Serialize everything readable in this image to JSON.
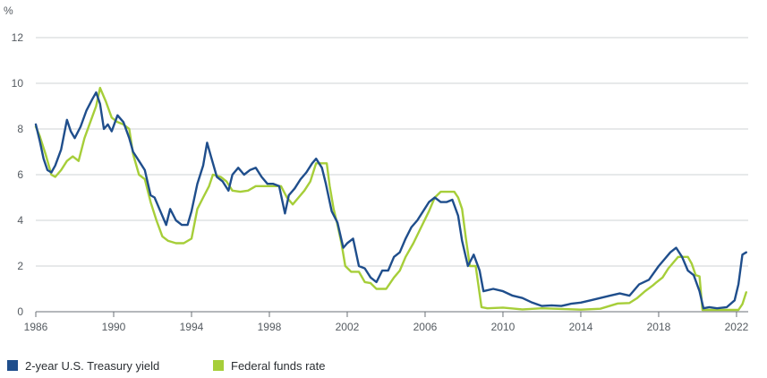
{
  "chart_data": {
    "type": "line",
    "title": "",
    "xlabel": "",
    "ylabel": "%",
    "xlim": [
      1986,
      2022.6
    ],
    "ylim": [
      0,
      12
    ],
    "x_ticks": [
      "1986",
      "1990",
      "1994",
      "1998",
      "2002",
      "2006",
      "2010",
      "2014",
      "2018",
      "2022"
    ],
    "y_ticks": [
      "0",
      "2",
      "4",
      "6",
      "8",
      "10",
      "12"
    ],
    "grid": "horizontal",
    "legend_position": "bottom-left",
    "colors": {
      "treasury": "#1f4e8c",
      "fedfunds": "#a6ce39",
      "grid": "#cfd3d6",
      "axis": "#6b7177"
    },
    "series": [
      {
        "name": "2-year U.S. Treasury yield",
        "color": "#1f4e8c",
        "x": [
          1986.0,
          1986.2,
          1986.4,
          1986.6,
          1986.8,
          1987.0,
          1987.3,
          1987.6,
          1987.8,
          1988.0,
          1988.3,
          1988.6,
          1988.9,
          1989.1,
          1989.3,
          1989.5,
          1989.7,
          1989.9,
          1990.2,
          1990.5,
          1990.8,
          1991.0,
          1991.3,
          1991.6,
          1991.9,
          1992.1,
          1992.4,
          1992.7,
          1992.9,
          1993.2,
          1993.5,
          1993.8,
          1994.0,
          1994.3,
          1994.6,
          1994.8,
          1995.0,
          1995.3,
          1995.6,
          1995.9,
          1996.1,
          1996.4,
          1996.7,
          1997.0,
          1997.3,
          1997.6,
          1997.9,
          1998.2,
          1998.5,
          1998.8,
          1999.0,
          1999.3,
          1999.6,
          1999.9,
          2000.2,
          2000.4,
          2000.7,
          2000.9,
          2001.2,
          2001.5,
          2001.8,
          2002.0,
          2002.3,
          2002.6,
          2002.9,
          2003.2,
          2003.5,
          2003.8,
          2004.1,
          2004.4,
          2004.7,
          2005.0,
          2005.3,
          2005.6,
          2005.9,
          2006.2,
          2006.5,
          2006.8,
          2007.1,
          2007.4,
          2007.7,
          2007.9,
          2008.2,
          2008.5,
          2008.8,
          2009.0,
          2009.5,
          2010.0,
          2010.5,
          2011.0,
          2011.5,
          2012.0,
          2012.5,
          2013.0,
          2013.5,
          2014.0,
          2014.5,
          2015.0,
          2015.5,
          2016.0,
          2016.5,
          2017.0,
          2017.5,
          2018.0,
          2018.3,
          2018.6,
          2018.9,
          2019.2,
          2019.5,
          2019.8,
          2020.1,
          2020.3,
          2020.6,
          2021.0,
          2021.5,
          2021.9,
          2022.1,
          2022.3,
          2022.5
        ],
        "y": [
          8.2,
          7.5,
          6.7,
          6.2,
          6.1,
          6.4,
          7.1,
          8.4,
          7.9,
          7.6,
          8.1,
          8.8,
          9.3,
          9.6,
          9.1,
          8.0,
          8.2,
          7.9,
          8.6,
          8.3,
          7.6,
          7.0,
          6.6,
          6.2,
          5.1,
          5.0,
          4.4,
          3.8,
          4.5,
          4.0,
          3.8,
          3.8,
          4.4,
          5.6,
          6.4,
          7.4,
          6.8,
          5.9,
          5.7,
          5.3,
          6.0,
          6.3,
          6.0,
          6.2,
          6.3,
          5.9,
          5.6,
          5.6,
          5.5,
          4.3,
          5.1,
          5.4,
          5.8,
          6.1,
          6.5,
          6.7,
          6.3,
          5.6,
          4.4,
          3.9,
          2.8,
          3.0,
          3.2,
          2.0,
          1.9,
          1.5,
          1.3,
          1.8,
          1.8,
          2.4,
          2.6,
          3.2,
          3.7,
          4.0,
          4.4,
          4.8,
          5.0,
          4.8,
          4.8,
          4.9,
          4.2,
          3.1,
          2.0,
          2.5,
          1.8,
          0.9,
          1.0,
          0.9,
          0.7,
          0.6,
          0.4,
          0.25,
          0.28,
          0.25,
          0.35,
          0.4,
          0.5,
          0.6,
          0.7,
          0.8,
          0.7,
          1.2,
          1.4,
          2.0,
          2.3,
          2.6,
          2.8,
          2.4,
          1.8,
          1.6,
          0.9,
          0.15,
          0.2,
          0.15,
          0.2,
          0.5,
          1.2,
          2.5,
          2.6
        ]
      },
      {
        "name": "Federal funds rate",
        "color": "#a6ce39",
        "x": [
          1986.0,
          1986.2,
          1986.5,
          1986.8,
          1987.0,
          1987.3,
          1987.6,
          1987.9,
          1988.2,
          1988.5,
          1988.8,
          1989.1,
          1989.3,
          1989.6,
          1989.9,
          1990.2,
          1990.5,
          1990.8,
          1991.0,
          1991.3,
          1991.6,
          1991.9,
          1992.2,
          1992.5,
          1992.8,
          1993.2,
          1993.6,
          1994.0,
          1994.3,
          1994.6,
          1994.9,
          1995.1,
          1995.5,
          1995.8,
          1996.1,
          1996.5,
          1996.9,
          1997.3,
          1997.7,
          1998.2,
          1998.6,
          1998.9,
          1999.2,
          1999.5,
          1999.8,
          2000.1,
          2000.4,
          2000.7,
          2000.95,
          2001.1,
          2001.3,
          2001.5,
          2001.7,
          2001.9,
          2002.2,
          2002.6,
          2002.9,
          2003.2,
          2003.5,
          2004.0,
          2004.4,
          2004.7,
          2005.0,
          2005.4,
          2005.8,
          2006.2,
          2006.5,
          2006.8,
          2007.2,
          2007.5,
          2007.7,
          2007.9,
          2008.1,
          2008.3,
          2008.6,
          2008.9,
          2009.2,
          2010.0,
          2011.0,
          2012.0,
          2013.0,
          2014.0,
          2015.0,
          2015.9,
          2016.5,
          2016.9,
          2017.3,
          2017.7,
          2017.9,
          2018.2,
          2018.5,
          2018.8,
          2019.0,
          2019.5,
          2019.7,
          2019.9,
          2020.1,
          2020.25,
          2021.0,
          2021.9,
          2022.1,
          2022.3,
          2022.5
        ],
        "y": [
          8.1,
          7.7,
          6.9,
          6.0,
          5.9,
          6.2,
          6.6,
          6.8,
          6.6,
          7.6,
          8.3,
          9.0,
          9.8,
          9.2,
          8.5,
          8.3,
          8.2,
          8.0,
          6.9,
          6.0,
          5.8,
          4.8,
          4.0,
          3.3,
          3.1,
          3.0,
          3.0,
          3.2,
          4.5,
          5.0,
          5.5,
          6.0,
          5.9,
          5.7,
          5.3,
          5.25,
          5.3,
          5.5,
          5.5,
          5.5,
          5.5,
          5.0,
          4.7,
          5.0,
          5.3,
          5.7,
          6.5,
          6.5,
          6.5,
          5.5,
          4.5,
          3.8,
          3.0,
          2.0,
          1.75,
          1.75,
          1.3,
          1.25,
          1.0,
          1.0,
          1.5,
          1.8,
          2.4,
          3.0,
          3.7,
          4.4,
          5.0,
          5.25,
          5.25,
          5.25,
          5.0,
          4.5,
          3.2,
          2.0,
          2.0,
          0.2,
          0.15,
          0.18,
          0.1,
          0.15,
          0.12,
          0.09,
          0.13,
          0.36,
          0.38,
          0.6,
          0.9,
          1.15,
          1.3,
          1.5,
          1.9,
          2.2,
          2.4,
          2.4,
          2.1,
          1.6,
          1.55,
          0.08,
          0.08,
          0.08,
          0.08,
          0.33,
          0.85
        ]
      }
    ]
  }
}
